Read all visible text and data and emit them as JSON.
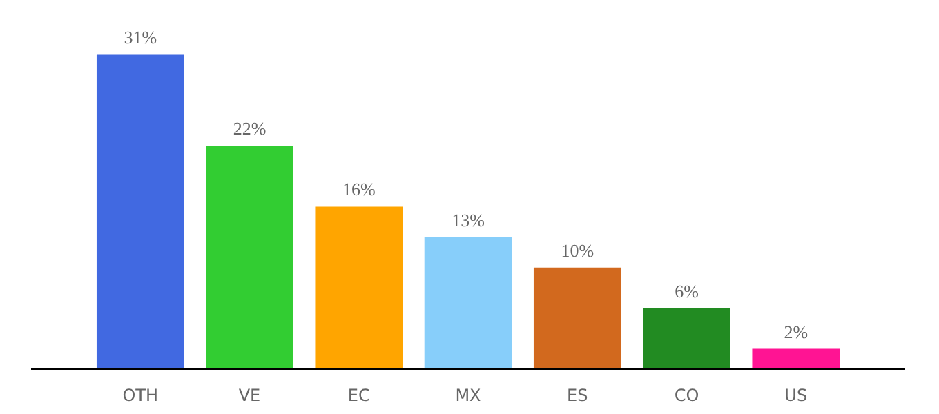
{
  "chart_data": {
    "type": "bar",
    "categories": [
      "OTH",
      "VE",
      "EC",
      "MX",
      "ES",
      "CO",
      "US"
    ],
    "values": [
      31,
      22,
      16,
      13,
      10,
      6,
      2
    ],
    "colors": [
      "#4169e1",
      "#32cd32",
      "#ffa500",
      "#87cefa",
      "#d2691e",
      "#228b22",
      "#ff1493"
    ],
    "value_labels": [
      "31%",
      "22%",
      "16%",
      "13%",
      "10%",
      "6%",
      "2%"
    ],
    "grid": false
  }
}
